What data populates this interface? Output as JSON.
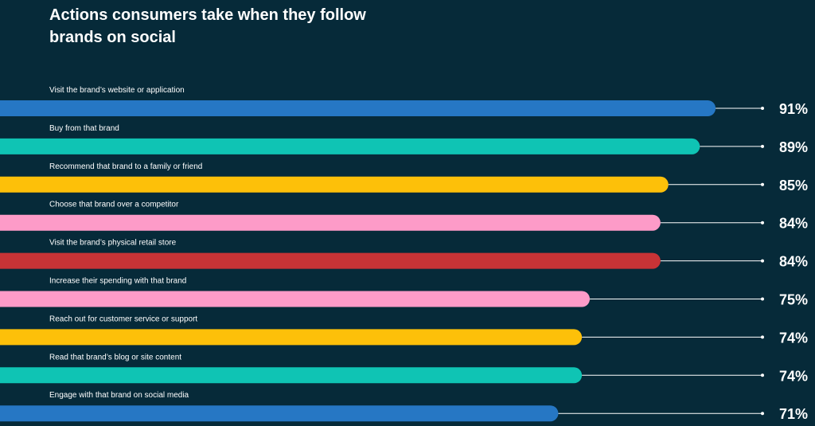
{
  "chart_data": {
    "type": "bar",
    "orientation": "horizontal",
    "title": "Actions consumers take when they follow brands on social",
    "categories": [
      "Visit the brand’s website or application",
      "Buy from that brand",
      "Recommend that brand to a family or friend",
      "Choose that brand over a competitor",
      "Visit the brand’s physical retail store",
      "Increase their spending with that brand",
      "Reach out for customer service or support",
      "Read that brand’s blog or site content",
      "Engage with that brand on social media"
    ],
    "values": [
      91,
      89,
      85,
      84,
      84,
      75,
      74,
      74,
      71
    ],
    "value_labels": [
      "91%",
      "89%",
      "85%",
      "84%",
      "84%",
      "75%",
      "74%",
      "74%",
      "71%"
    ],
    "colors": [
      "#2677c4",
      "#0fc4b4",
      "#fdc009",
      "#fd9bc8",
      "#c83336",
      "#fd9bc8",
      "#fdc009",
      "#0fc4b4",
      "#2677c4"
    ],
    "xlim": [
      0,
      100
    ],
    "grid": false,
    "legend": false
  },
  "theme": {
    "background": "#062a39",
    "text": "#ffffff",
    "leader_line": "#ffffff"
  }
}
